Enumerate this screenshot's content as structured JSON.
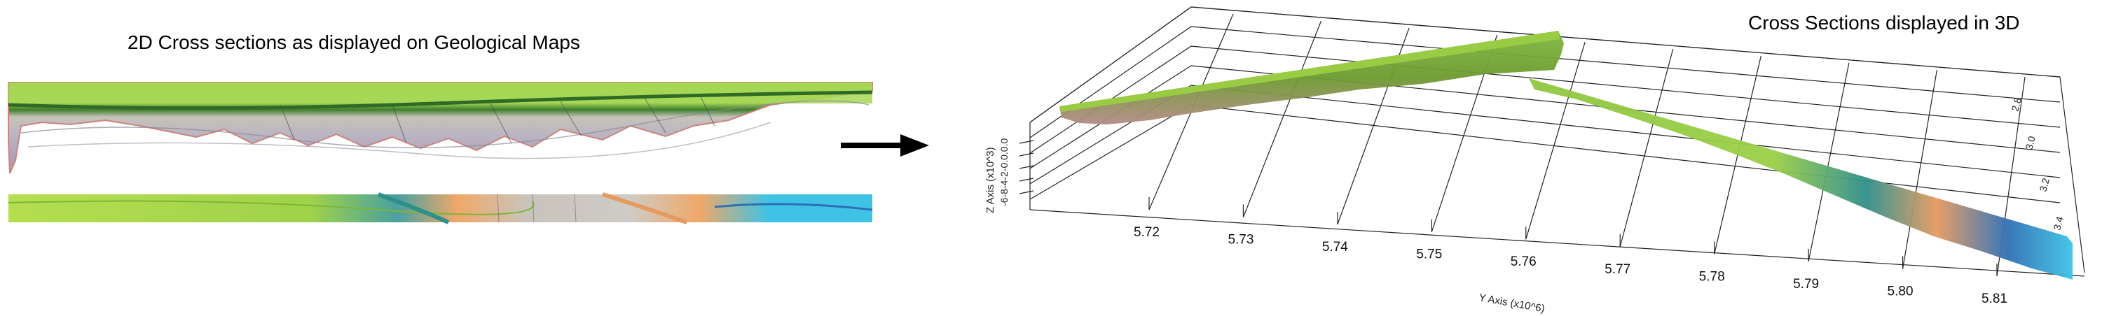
{
  "left_panel": {
    "title": "2D Cross sections as displayed on Geological Maps"
  },
  "right_panel": {
    "title": "Cross Sections displayed in 3D",
    "y_axis_label": "Y Axis (x10^6)",
    "y_ticks": [
      "5.72",
      "5.73",
      "5.74",
      "5.75",
      "5.76",
      "5.77",
      "5.78",
      "5.79",
      "5.80",
      "5.81"
    ],
    "z_axis_label": "Z Axis (x10^3)",
    "z_ticks_overlap": "-6-8-4-2-0.0.0.0",
    "z_tick_values": [
      "-6",
      "-4",
      "-2",
      "0.0"
    ],
    "x_side_ticks": [
      "2.8",
      "3.0",
      "3.2",
      "3.4"
    ]
  },
  "colors": {
    "green": "#8fc640",
    "lime": "#b5de50",
    "olive": "#6c9a2f",
    "grey_layer": "#b7b4a9",
    "lilac_layer": "#b3a3b8",
    "pink_edge": "#d98f86",
    "cyan": "#3ec3e6",
    "orange": "#f0a868",
    "teal": "#2f8f8a",
    "blue": "#2f6fb5",
    "arrow": "#000000"
  }
}
